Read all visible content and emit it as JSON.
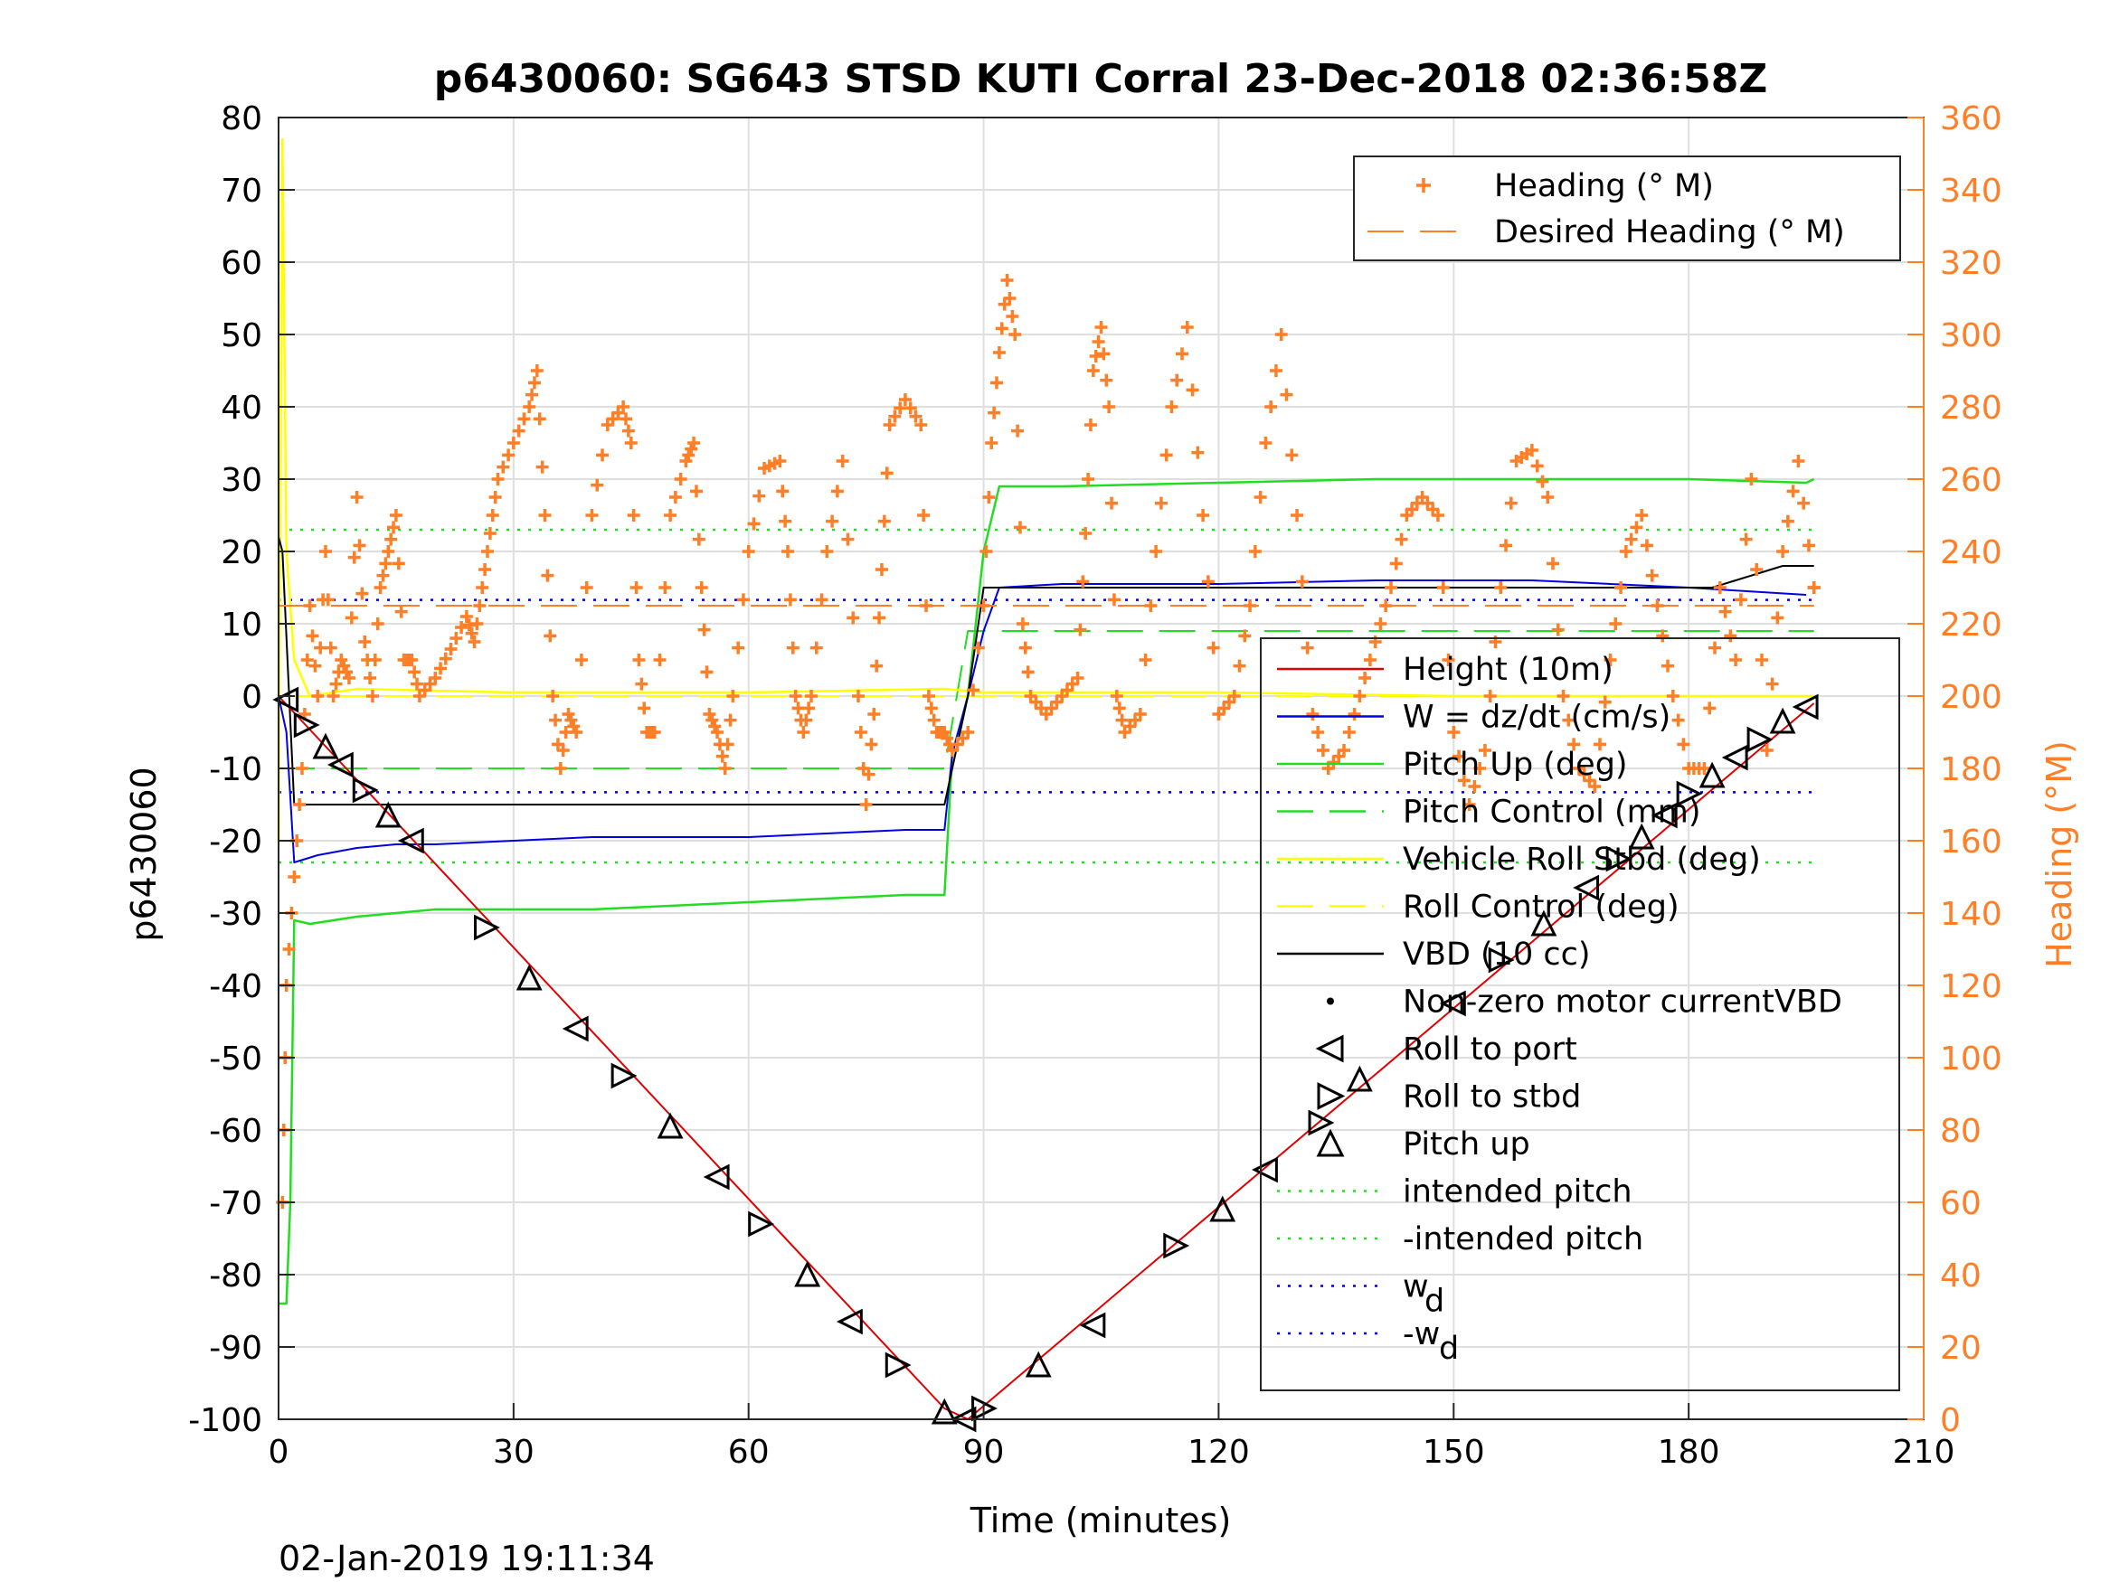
{
  "title": "p6430060: SG643 STSD KUTI Corral 23-Dec-2018 02:36:58Z",
  "timestamp": "02-Jan-2019 19:11:34",
  "colors": {
    "heading": "#FF7F27",
    "height": "#E00000",
    "w": "#0000E0",
    "pitch": "#22DD22",
    "roll": "#FFFF00",
    "vbd": "#000000"
  },
  "chart_data": {
    "type": "line",
    "xlabel": "Time (minutes)",
    "ylabel": "p6430060",
    "y2label": "Heading (°M)",
    "xlim": [
      0,
      210
    ],
    "ylim": [
      -100,
      80
    ],
    "y2lim": [
      0,
      360
    ],
    "x_ticks": [
      "0",
      "30",
      "60",
      "90",
      "120",
      "150",
      "180",
      "210"
    ],
    "y_ticks": [
      "80",
      "70",
      "60",
      "50",
      "40",
      "30",
      "20",
      "10",
      "0",
      "-10",
      "-20",
      "-30",
      "-40",
      "-50",
      "-60",
      "-70",
      "-80",
      "-90",
      "-100"
    ],
    "y2_ticks": [
      "360",
      "340",
      "320",
      "300",
      "280",
      "260",
      "240",
      "220",
      "200",
      "180",
      "160",
      "140",
      "120",
      "100",
      "80",
      "60",
      "40",
      "20",
      "0"
    ],
    "grid": true,
    "legend_top": {
      "placement": "top-right",
      "entries": [
        "Heading (° M)",
        "Desired Heading (° M)"
      ]
    },
    "legend_main": {
      "placement": "lower-right",
      "entries": [
        "Height (10m)",
        "W = dz/dt (cm/s)",
        "Pitch Up (deg)",
        "Pitch Control (mm)",
        "Vehicle Roll Stbd (deg)",
        "Roll Control (deg)",
        "VBD (10 cc)",
        "Non-zero motor currentVBD",
        "Roll to port",
        "Roll to stbd",
        "Pitch up",
        "intended pitch",
        "-intended pitch",
        "w",
        "-w"
      ],
      "subscript": "d"
    },
    "series": [
      {
        "name": "Height (10m)",
        "x": [
          0,
          85,
          88,
          196
        ],
        "y": [
          0,
          -98.5,
          -100,
          -1
        ]
      },
      {
        "name": "W = dz/dt (cm/s)",
        "x": [
          0,
          1,
          2,
          5,
          10,
          15,
          20,
          40,
          60,
          80,
          85,
          86,
          88,
          90,
          92,
          100,
          120,
          140,
          160,
          180,
          195
        ],
        "y": [
          0,
          -5,
          -23,
          -22,
          -21,
          -20.5,
          -20.5,
          -19.5,
          -19.5,
          -18.5,
          -18.5,
          -8,
          0,
          9,
          15,
          15.5,
          15.5,
          16,
          16,
          15,
          14
        ]
      },
      {
        "name": "Pitch Up (deg)",
        "x": [
          0,
          1,
          1.5,
          2,
          4,
          10,
          20,
          40,
          60,
          80,
          85,
          86,
          88,
          90,
          92,
          100,
          120,
          140,
          160,
          180,
          195,
          196
        ],
        "y": [
          -84,
          -84,
          -70,
          -31,
          -31.5,
          -30.5,
          -29.5,
          -29.5,
          -28.5,
          -27.5,
          -27.5,
          -8,
          0,
          20,
          29,
          29,
          29.5,
          30,
          30,
          30,
          29.5,
          30
        ]
      },
      {
        "name": "Pitch Control (mm)",
        "x": [
          0,
          85,
          88,
          196
        ],
        "y": [
          -10,
          -10,
          9,
          9
        ]
      },
      {
        "name": "Vehicle Roll Stbd (deg)",
        "x": [
          0,
          0.5,
          1,
          2,
          4,
          10,
          30,
          60,
          85,
          90,
          120,
          150,
          180,
          196
        ],
        "y": [
          -20,
          77,
          20,
          5,
          0,
          1,
          0.5,
          0.5,
          1,
          0.5,
          0.5,
          0,
          0,
          0
        ]
      },
      {
        "name": "Roll Control (deg)",
        "x": [
          0,
          196
        ],
        "y": [
          0,
          0
        ]
      },
      {
        "name": "VBD (10 cc)",
        "x": [
          0,
          0.5,
          2,
          85,
          88,
          90,
          183,
          186,
          189,
          192,
          196
        ],
        "y": [
          22,
          20,
          -15,
          -15,
          0,
          15,
          15,
          16,
          17,
          18,
          18
        ]
      },
      {
        "name": "intended pitch",
        "x": [
          0,
          196
        ],
        "y": [
          23,
          23
        ]
      },
      {
        "name": "-intended pitch",
        "x": [
          0,
          196
        ],
        "y": [
          -23,
          -23
        ]
      },
      {
        "name": "w",
        "x": [
          0,
          196
        ],
        "y": [
          13.3,
          13.3
        ]
      },
      {
        "name": "-w",
        "x": [
          0,
          196
        ],
        "y": [
          -13.3,
          -13.3
        ]
      }
    ],
    "heading": {
      "name": "Heading (° M)",
      "x": [
        0.5,
        1,
        2,
        3,
        4,
        5,
        6,
        7,
        8,
        9,
        10,
        11,
        12,
        13,
        14,
        15,
        16,
        17,
        18,
        20,
        22,
        24,
        25,
        26,
        27,
        28,
        30,
        32,
        33,
        34,
        35,
        36,
        37,
        38,
        40,
        42,
        44,
        45,
        46,
        47,
        48,
        50,
        52,
        53,
        54,
        55,
        56,
        57,
        58,
        60,
        62,
        64,
        65,
        66,
        67,
        68,
        70,
        72,
        74,
        75,
        76,
        77,
        78,
        80,
        82,
        83,
        84,
        85,
        86,
        88,
        90,
        91,
        92,
        93,
        94,
        95,
        96,
        98,
        100,
        102,
        103,
        104,
        105,
        106,
        107,
        108,
        110,
        112,
        114,
        116,
        118,
        120,
        122,
        124,
        126,
        128,
        130,
        132,
        134,
        136,
        138,
        140,
        142,
        144,
        146,
        148,
        150,
        152,
        154,
        156,
        158,
        160,
        162,
        164,
        166,
        168,
        170,
        172,
        174,
        176,
        178,
        180,
        182,
        184,
        186,
        188,
        190,
        192,
        194,
        196
      ],
      "y": [
        60,
        120,
        150,
        180,
        225,
        200,
        240,
        200,
        210,
        205,
        255,
        215,
        200,
        230,
        240,
        250,
        210,
        210,
        200,
        205,
        213,
        222,
        215,
        230,
        245,
        260,
        270,
        280,
        290,
        250,
        200,
        180,
        195,
        190,
        250,
        275,
        280,
        270,
        210,
        190,
        190,
        250,
        265,
        270,
        230,
        195,
        190,
        180,
        200,
        240,
        263,
        265,
        240,
        200,
        190,
        200,
        240,
        265,
        200,
        170,
        195,
        235,
        275,
        282,
        275,
        200,
        190,
        190,
        185,
        190,
        225,
        270,
        295,
        315,
        300,
        220,
        200,
        195,
        200,
        205,
        245,
        290,
        302,
        280,
        200,
        190,
        195,
        240,
        280,
        302,
        250,
        195,
        200,
        225,
        270,
        300,
        250,
        195,
        180,
        185,
        200,
        215,
        230,
        250,
        255,
        250,
        190,
        170,
        185,
        230,
        265,
        268,
        255,
        200,
        180,
        175,
        210,
        240,
        250,
        225,
        200,
        180,
        180,
        230,
        210,
        260,
        185,
        240,
        265,
        230
      ]
    },
    "desired_heading": {
      "name": "Desired Heading (° M)",
      "x": [
        0,
        196
      ],
      "y": [
        225,
        225
      ]
    },
    "markers": [
      {
        "x": 1,
        "y": -0.5
      },
      {
        "x": 3.5,
        "y": -4
      },
      {
        "x": 6,
        "y": -7
      },
      {
        "x": 8,
        "y": -9.5
      },
      {
        "x": 11,
        "y": -13
      },
      {
        "x": 14,
        "y": -16.5
      },
      {
        "x": 17,
        "y": -20
      },
      {
        "x": 26.5,
        "y": -32
      },
      {
        "x": 32,
        "y": -39
      },
      {
        "x": 38,
        "y": -46
      },
      {
        "x": 44,
        "y": -52.5
      },
      {
        "x": 50,
        "y": -59.5
      },
      {
        "x": 56,
        "y": -66.5
      },
      {
        "x": 61.5,
        "y": -73
      },
      {
        "x": 67.5,
        "y": -80
      },
      {
        "x": 73,
        "y": -86.5
      },
      {
        "x": 79,
        "y": -92.5
      },
      {
        "x": 85,
        "y": -99
      },
      {
        "x": 87.5,
        "y": -100
      },
      {
        "x": 90,
        "y": -98.5
      },
      {
        "x": 97,
        "y": -92.5
      },
      {
        "x": 104,
        "y": -87
      },
      {
        "x": 114.5,
        "y": -76
      },
      {
        "x": 120.5,
        "y": -71
      },
      {
        "x": 126,
        "y": -65.5
      },
      {
        "x": 133,
        "y": -59
      },
      {
        "x": 138,
        "y": -53
      },
      {
        "x": 150,
        "y": -42.5
      },
      {
        "x": 156,
        "y": -36.5
      },
      {
        "x": 161.5,
        "y": -31.5
      },
      {
        "x": 167,
        "y": -26.5
      },
      {
        "x": 171,
        "y": -22.5
      },
      {
        "x": 174,
        "y": -19.5
      },
      {
        "x": 177,
        "y": -16.5
      },
      {
        "x": 180,
        "y": -13.5
      },
      {
        "x": 183,
        "y": -11
      },
      {
        "x": 186,
        "y": -8.5
      },
      {
        "x": 189,
        "y": -6
      },
      {
        "x": 192,
        "y": -3.5
      },
      {
        "x": 195,
        "y": -1.5
      }
    ]
  }
}
